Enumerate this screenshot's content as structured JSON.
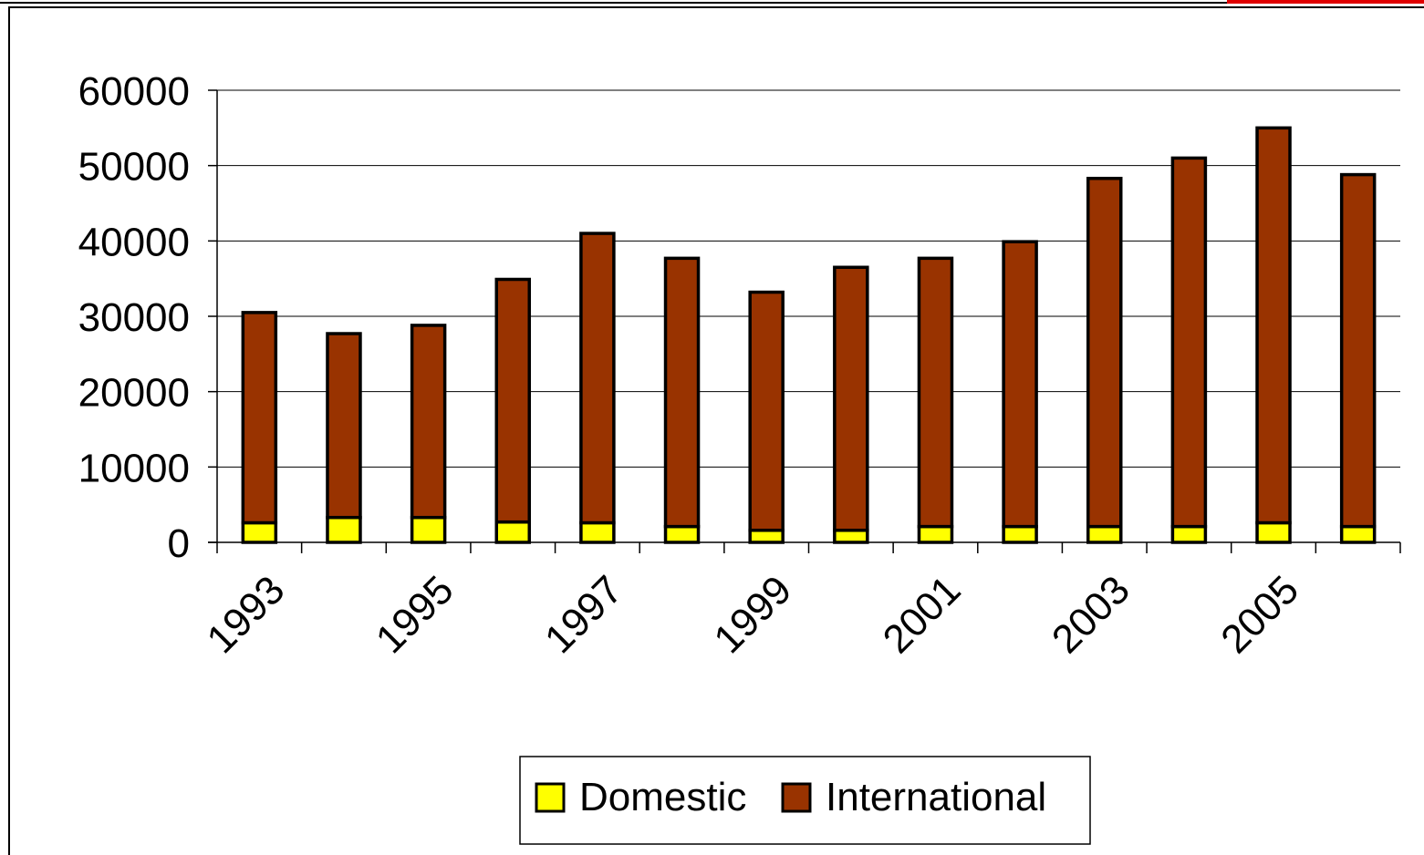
{
  "chart_data": {
    "type": "bar",
    "stacked": true,
    "categories": [
      "1993",
      "1994",
      "1995",
      "1996",
      "1997",
      "1998",
      "1999",
      "2000",
      "2001",
      "2002",
      "2003",
      "2004",
      "2005",
      "2006"
    ],
    "x_tick_labels": [
      "1993",
      "1995",
      "1997",
      "1999",
      "2001",
      "2003",
      "2005"
    ],
    "series": [
      {
        "name": "Domestic",
        "color": "#ffff00",
        "values": [
          2600,
          3300,
          3300,
          2700,
          2600,
          2100,
          1600,
          1600,
          2100,
          2100,
          2100,
          2100,
          2600,
          2100
        ]
      },
      {
        "name": "International",
        "color": "#993300",
        "values": [
          27900,
          24400,
          25500,
          32200,
          38400,
          35600,
          31600,
          34900,
          35600,
          37800,
          46200,
          48900,
          52400,
          46700
        ]
      }
    ],
    "title": "",
    "xlabel": "",
    "ylabel": "",
    "ylim": [
      0,
      60000
    ],
    "y_ticks": [
      0,
      10000,
      20000,
      30000,
      40000,
      50000,
      60000
    ],
    "grid": true,
    "legend_position": "bottom"
  }
}
